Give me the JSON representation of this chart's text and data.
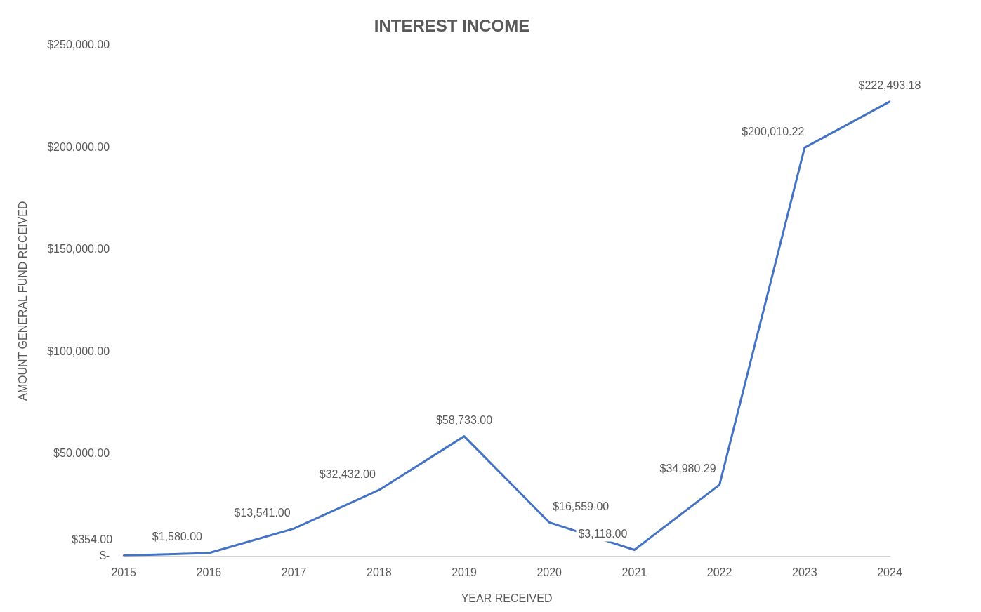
{
  "chart_data": {
    "type": "line",
    "title": "INTEREST INCOME",
    "xlabel": "YEAR RECEIVED",
    "ylabel": "AMOUNT GENERAL FUND RECEIVED",
    "categories": [
      "2015",
      "2016",
      "2017",
      "2018",
      "2019",
      "2020",
      "2021",
      "2022",
      "2023",
      "2024"
    ],
    "series": [
      {
        "color": "#4472c4",
        "values": [
          354,
          1580,
          13541,
          32432,
          58733,
          16559,
          3118,
          34980.29,
          200010.22,
          222493.18
        ],
        "value_labels": [
          "$354.00",
          "$1,580.00",
          "$13,541.00",
          "$32,432.00",
          "$58,733.00",
          "$16,559.00",
          "$3,118.00",
          "$34,980.29",
          "$200,010.22",
          "$222,493.18"
        ]
      }
    ],
    "ylim": [
      0,
      250000
    ],
    "yticks": [
      {
        "value": 0,
        "label": "$-"
      },
      {
        "value": 50000,
        "label": "$50,000.00"
      },
      {
        "value": 100000,
        "label": "$100,000.00"
      },
      {
        "value": 150000,
        "label": "$150,000.00"
      },
      {
        "value": 200000,
        "label": "$200,000.00"
      },
      {
        "value": 250000,
        "label": "$250,000.00"
      }
    ],
    "grid": false,
    "legend": false,
    "marker": "none",
    "line_style": "solid"
  }
}
